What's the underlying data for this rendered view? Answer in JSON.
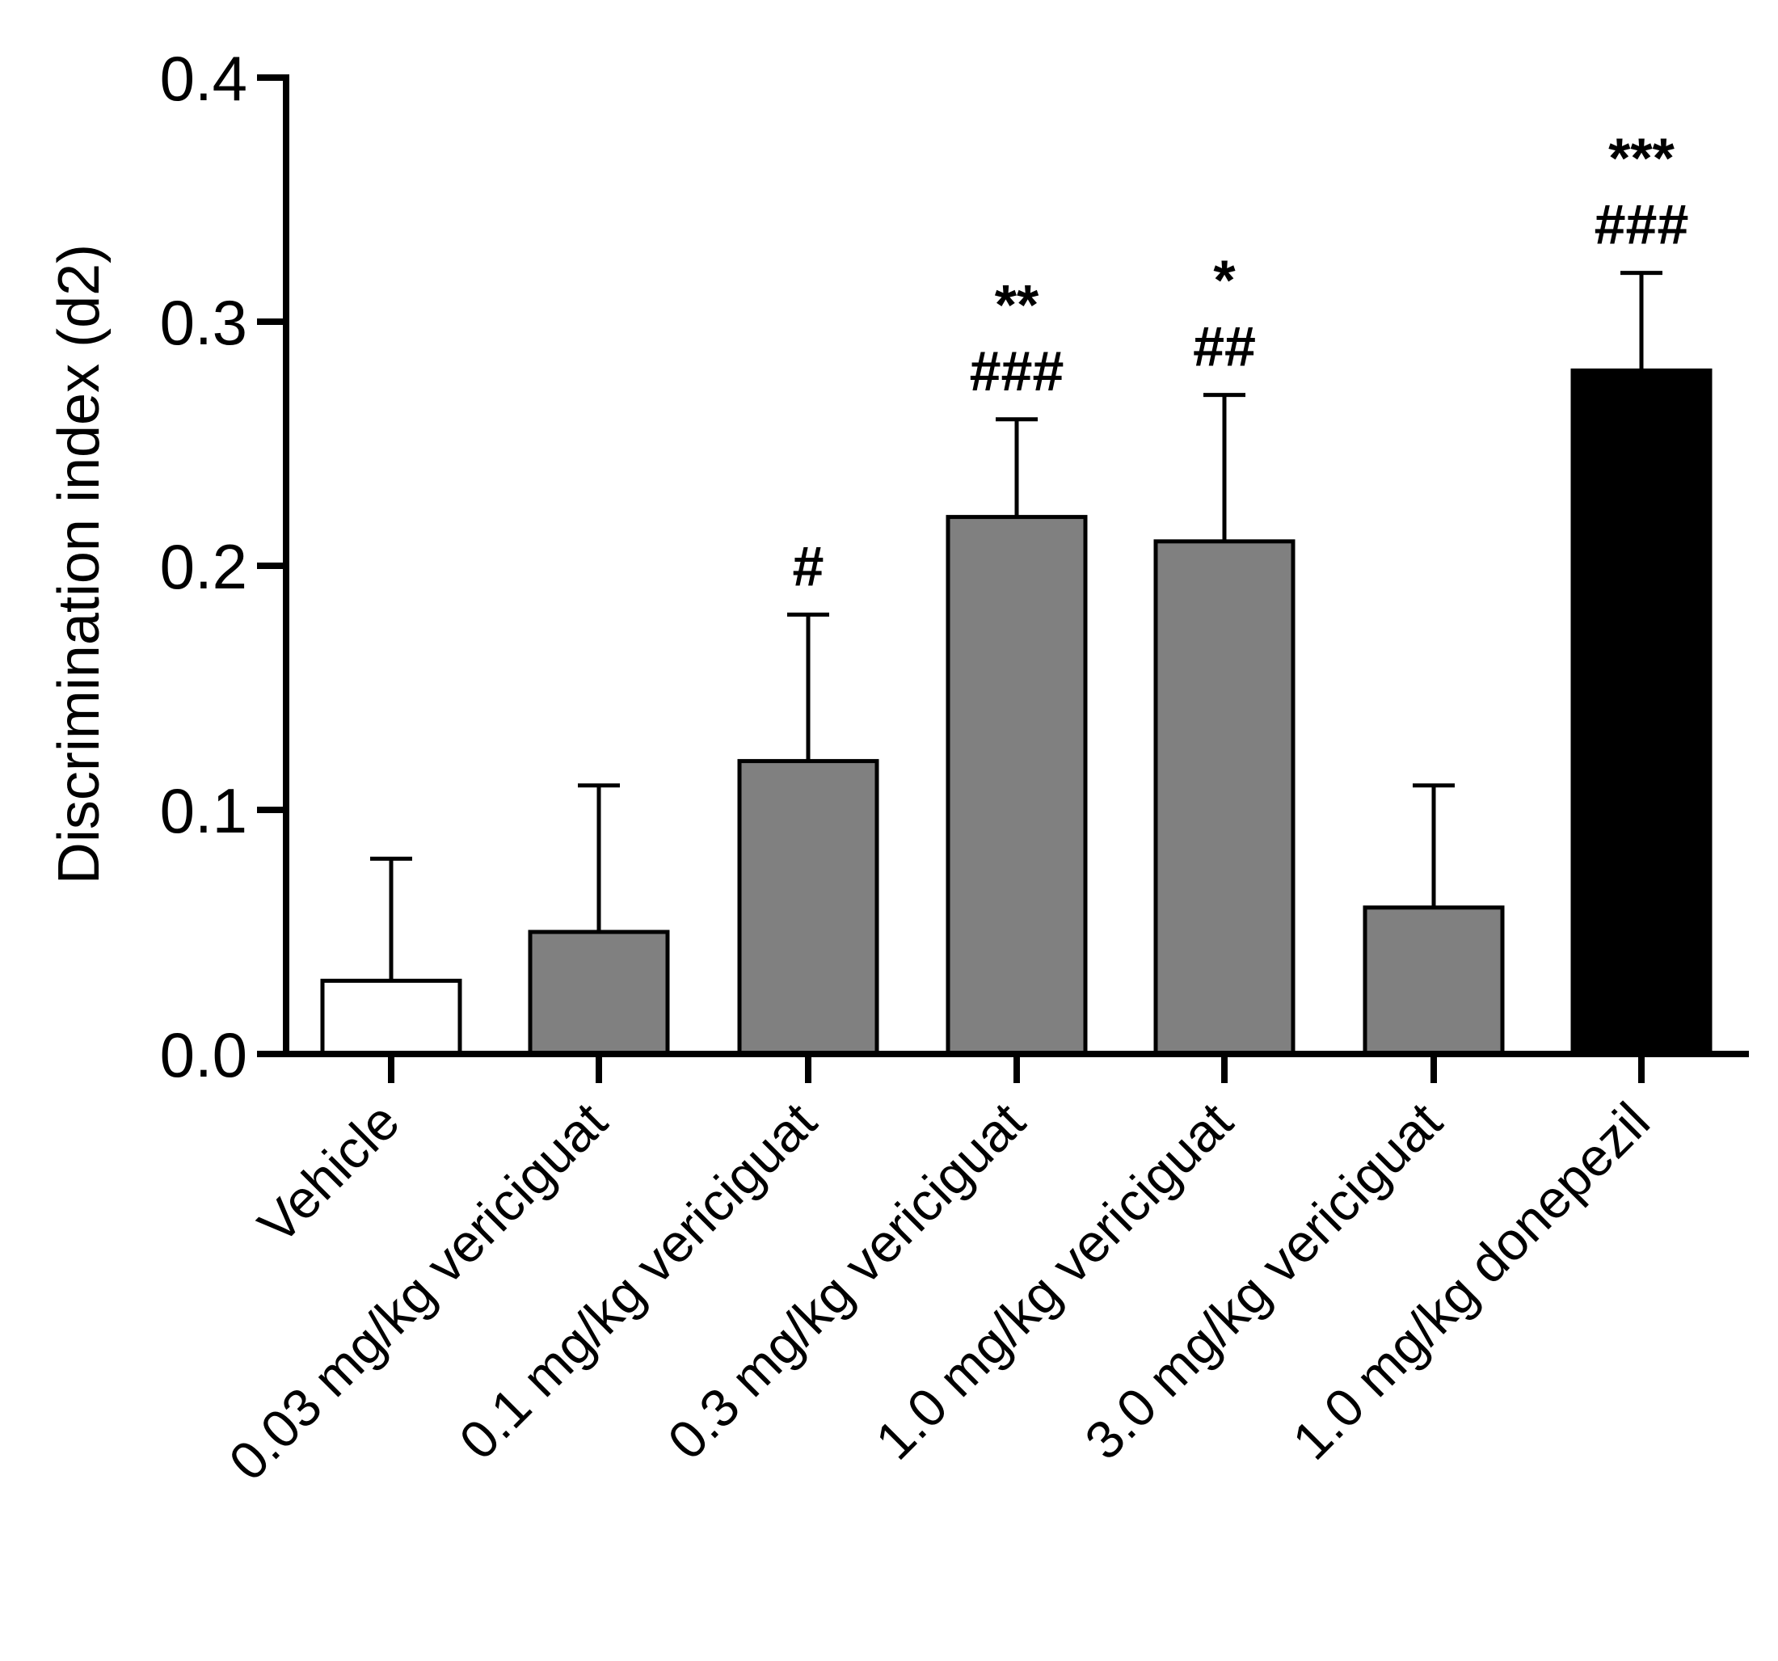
{
  "chart_data": {
    "type": "bar",
    "title": "",
    "xlabel": "",
    "ylabel": "Discrimination index (d2)",
    "ylim": [
      0,
      0.4
    ],
    "yticks": [
      "0.0",
      "0.1",
      "0.2",
      "0.3",
      "0.4"
    ],
    "ytick_values": [
      0,
      0.1,
      0.2,
      0.3,
      0.4
    ],
    "grid": false,
    "legend": "none",
    "categories": [
      "Vehicle",
      "0.03 mg/kg vericiguat",
      "0.1 mg/kg vericiguat",
      "0.3 mg/kg vericiguat",
      "1.0 mg/kg vericiguat",
      "3.0 mg/kg vericiguat",
      "1.0 mg/kg donepezil"
    ],
    "values": [
      0.03,
      0.05,
      0.12,
      0.22,
      0.21,
      0.06,
      0.28
    ],
    "error_upper": [
      0.05,
      0.06,
      0.06,
      0.04,
      0.06,
      0.05,
      0.04
    ],
    "bar_colors": [
      "#ffffff",
      "#808080",
      "#808080",
      "#808080",
      "#808080",
      "#808080",
      "#000000"
    ],
    "annotations": [
      [],
      [],
      [
        "#"
      ],
      [
        "**",
        "###"
      ],
      [
        "*",
        "##"
      ],
      [],
      [
        "***",
        "###"
      ]
    ]
  }
}
